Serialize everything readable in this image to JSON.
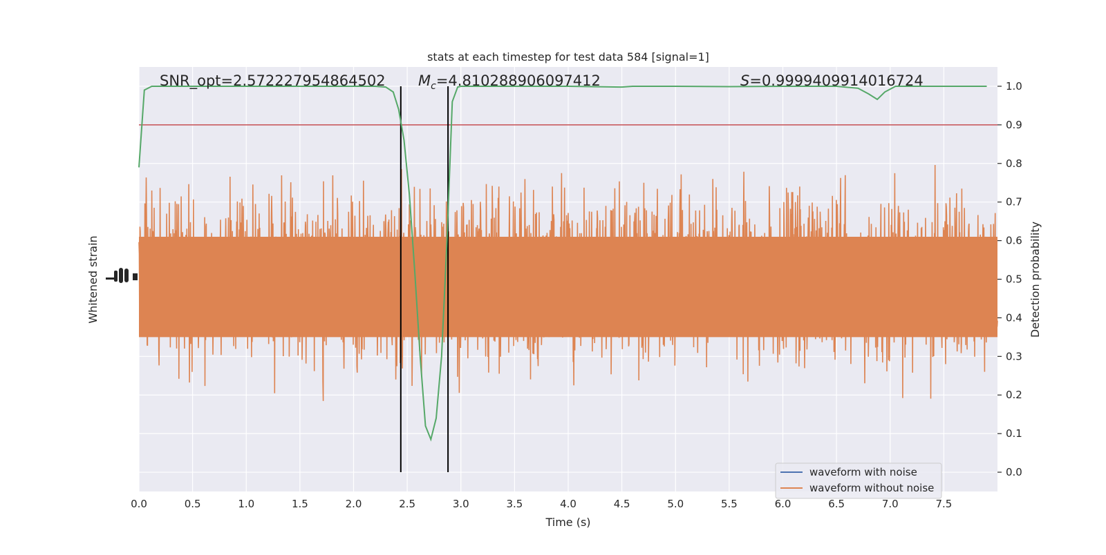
{
  "chart_data": {
    "type": "line",
    "title": "stats at each timestep for test data 584 [signal=1]",
    "xlabel": "Time (s)",
    "ylabel_left": "Whitened strain",
    "ylabel_right": "Detection probability",
    "xlim": [
      0.0,
      8.0
    ],
    "ylim_right": [
      -0.05,
      1.05
    ],
    "x_ticks": [
      "0.0",
      "0.5",
      "1.0",
      "1.5",
      "2.0",
      "2.5",
      "3.0",
      "3.5",
      "4.0",
      "4.5",
      "5.0",
      "5.5",
      "6.0",
      "6.5",
      "7.0",
      "7.5"
    ],
    "x_tick_values": [
      0.0,
      0.5,
      1.0,
      1.5,
      2.0,
      2.5,
      3.0,
      3.5,
      4.0,
      4.5,
      5.0,
      5.5,
      6.0,
      6.5,
      7.0,
      7.5
    ],
    "y_right_ticks": [
      "0.0",
      "0.1",
      "0.2",
      "0.3",
      "0.4",
      "0.5",
      "0.6",
      "0.7",
      "0.8",
      "0.9",
      "1.0"
    ],
    "y_right_tick_values": [
      0.0,
      0.1,
      0.2,
      0.3,
      0.4,
      0.5,
      0.6,
      0.7,
      0.8,
      0.9,
      1.0
    ],
    "annotations": {
      "snr": "SNR_opt=2.572227954864502",
      "mc_symbol": "M",
      "mc_sub": "c",
      "mc_value": "=4.810288906097412",
      "s_symbol": "S",
      "s_value": "=0.9999409914016724"
    },
    "threshold": 0.9,
    "vertical_lines": [
      2.44,
      2.88
    ],
    "legend": {
      "position": "lower-right",
      "entries": [
        {
          "label": "waveform with noise",
          "color": "#4c72b0"
        },
        {
          "label": "waveform without noise",
          "color": "#dd8452"
        }
      ]
    },
    "series": [
      {
        "name": "Detection probability",
        "color": "#55a868",
        "x": [
          0.0,
          0.05,
          0.12,
          0.2,
          0.5,
          1.0,
          1.5,
          2.0,
          2.2,
          2.3,
          2.37,
          2.42,
          2.47,
          2.52,
          2.57,
          2.62,
          2.67,
          2.72,
          2.77,
          2.82,
          2.87,
          2.92,
          2.97,
          3.0,
          3.1,
          3.5,
          4.0,
          4.5,
          4.6,
          5.0,
          5.5,
          6.0,
          6.5,
          6.7,
          6.8,
          6.88,
          6.95,
          7.05,
          7.5,
          7.9
        ],
        "y": [
          0.79,
          0.99,
          1.0,
          1.0,
          1.0,
          1.0,
          1.0,
          1.0,
          1.0,
          0.998,
          0.985,
          0.94,
          0.86,
          0.72,
          0.52,
          0.3,
          0.12,
          0.085,
          0.14,
          0.3,
          0.6,
          0.96,
          0.998,
          1.0,
          1.0,
          1.0,
          1.0,
          0.998,
          1.0,
          1.0,
          0.999,
          1.0,
          1.0,
          0.995,
          0.98,
          0.966,
          0.985,
          1.0,
          1.0,
          1.0
        ]
      }
    ],
    "colors": {
      "background": "#eaeaf2",
      "grid": "#ffffff",
      "noise_fill": "#dd8452",
      "threshold_line": "#c44e52",
      "probability_line": "#55a868",
      "vline": "#000000"
    }
  }
}
